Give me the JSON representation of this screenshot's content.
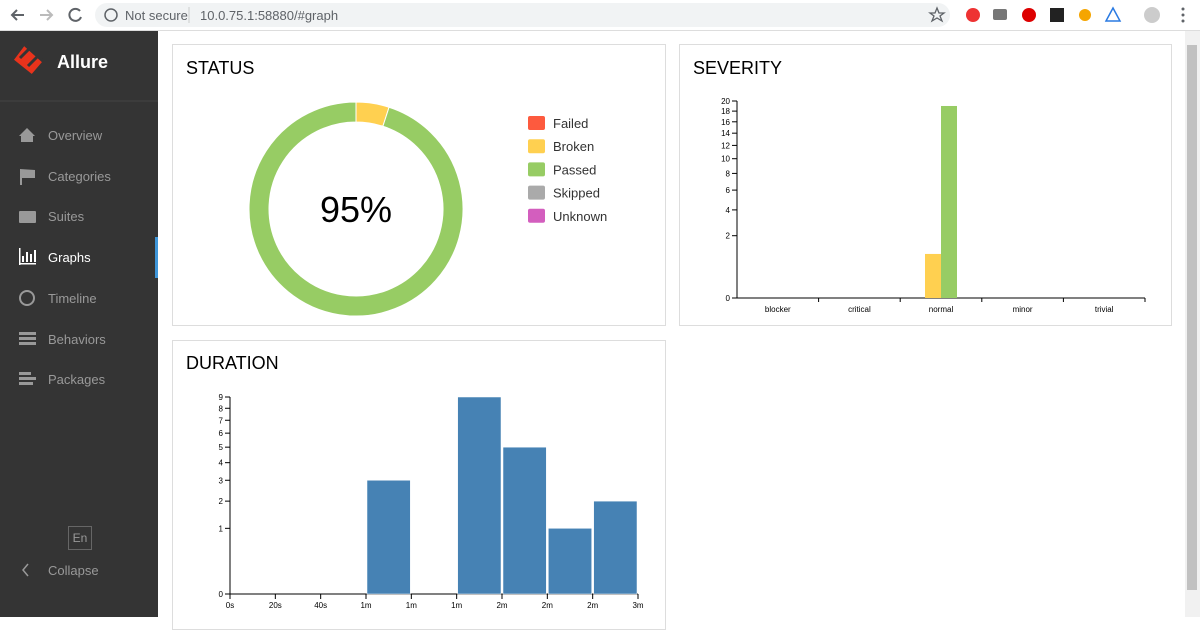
{
  "browser": {
    "security": "Not secure",
    "url": "10.0.75.1:58880/#graph"
  },
  "sidebar": {
    "brand": "Allure",
    "nav": [
      "Overview",
      "Categories",
      "Suites",
      "Graphs",
      "Timeline",
      "Behaviors",
      "Packages"
    ],
    "language": "En",
    "collapse": "Collapse"
  },
  "chart_data": [
    {
      "type": "pie",
      "title": "STATUS",
      "center_label": "95%",
      "categories": [
        "Failed",
        "Broken",
        "Passed",
        "Skipped",
        "Unknown"
      ],
      "values": [
        0,
        1,
        19,
        0,
        0
      ],
      "colors": [
        "#fd5a3e",
        "#ffd050",
        "#97cc64",
        "#aaaaaa",
        "#d35ebe"
      ],
      "donut": true,
      "legend": "right"
    },
    {
      "type": "bar",
      "title": "SEVERITY",
      "categories": [
        "blocker",
        "critical",
        "normal",
        "minor",
        "trivial"
      ],
      "series": [
        {
          "color": "#ffd050",
          "values": [
            0,
            0,
            1,
            0,
            0
          ]
        },
        {
          "color": "#97cc64",
          "values": [
            0,
            0,
            19,
            0,
            0
          ]
        }
      ],
      "ylim": [
        0,
        20
      ],
      "yticks": [
        0,
        2,
        4,
        6,
        8,
        10,
        12,
        14,
        16,
        18,
        20
      ],
      "y_scale": "sqrt"
    },
    {
      "type": "histogram",
      "title": "DURATION",
      "bins": [
        60,
        80,
        100,
        120,
        140,
        160,
        180
      ],
      "values": [
        3,
        0,
        9,
        5,
        1,
        2
      ],
      "color": "#4682b4",
      "xlim": [
        0,
        180
      ],
      "xticks": [
        {
          "value": 0,
          "label": "0s"
        },
        {
          "value": 20,
          "label": "20s"
        },
        {
          "value": 40,
          "label": "40s"
        },
        {
          "value": 60,
          "label": "1m"
        },
        {
          "value": 80,
          "label": "1m"
        },
        {
          "value": 100,
          "label": "1m"
        },
        {
          "value": 120,
          "label": "2m"
        },
        {
          "value": 140,
          "label": "2m"
        },
        {
          "value": 160,
          "label": "2m"
        },
        {
          "value": 180,
          "label": "3m"
        }
      ],
      "ylim": [
        0,
        9
      ],
      "yticks": [
        0,
        1,
        2,
        3,
        4,
        5,
        6,
        7,
        8,
        9
      ],
      "y_scale": "sqrt"
    }
  ]
}
